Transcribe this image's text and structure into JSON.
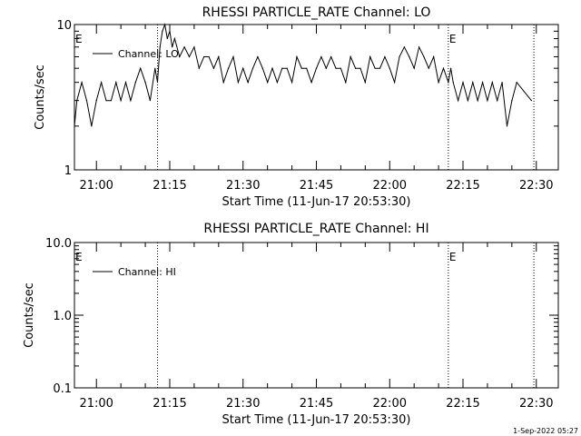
{
  "footer": {
    "timestamp": "1-Sep-2022 05:27"
  },
  "chart_data": [
    {
      "type": "line",
      "title": "RHESSI PARTICLE_RATE Channel: LO",
      "xlabel": "Start Time (11-Jun-17 20:53:30)",
      "ylabel": "Counts/sec",
      "yscale": "log",
      "ylim": [
        1,
        10
      ],
      "yticks": [
        "1",
        "10"
      ],
      "xlim_minutes_after_2050": [
        5.5,
        104.5
      ],
      "xticks": [
        "21:00",
        "21:15",
        "21:30",
        "21:45",
        "22:00",
        "22:15",
        "22:30"
      ],
      "xticks_minutes_after_2050": [
        10,
        25,
        40,
        55,
        70,
        85,
        100
      ],
      "vlines_minutes_after_2050": [
        22.5,
        82,
        99.5
      ],
      "markers": [
        {
          "text": "E",
          "minutes_after_2050": 5.5
        },
        {
          "text": "E",
          "minutes_after_2050": 82
        }
      ],
      "legend": {
        "position": "top-left",
        "entries": [
          "Channel: LO"
        ]
      },
      "series": [
        {
          "name": "Channel: LO",
          "x_minutes_after_2050": [
            5.5,
            6,
            7,
            8,
            9,
            10,
            11,
            12,
            13,
            14,
            15,
            16,
            17,
            18,
            19,
            20,
            21,
            22,
            22.5,
            23,
            23.5,
            24,
            24.5,
            25,
            25.5,
            26,
            27,
            28,
            29,
            30,
            31,
            32,
            33,
            34,
            35,
            36,
            37,
            38,
            39,
            40,
            41,
            42,
            43,
            44,
            45,
            46,
            47,
            48,
            49,
            50,
            51,
            52,
            53,
            54,
            55,
            56,
            57,
            58,
            59,
            60,
            61,
            62,
            63,
            64,
            65,
            66,
            67,
            68,
            69,
            70,
            71,
            72,
            73,
            74,
            75,
            76,
            77,
            78,
            79,
            80,
            81,
            82,
            82.5,
            83,
            84,
            85,
            86,
            87,
            88,
            89,
            90,
            91,
            92,
            93,
            94,
            95,
            96,
            99
          ],
          "y": [
            2,
            3,
            4,
            3,
            2,
            3,
            4,
            3,
            3,
            4,
            3,
            4,
            3,
            4,
            5,
            4,
            3,
            5,
            4,
            7,
            9,
            10,
            8,
            9,
            7,
            8,
            6,
            7,
            6,
            7,
            5,
            6,
            6,
            5,
            6,
            4,
            5,
            6,
            4,
            5,
            4,
            5,
            6,
            5,
            4,
            5,
            4,
            5,
            5,
            4,
            6,
            5,
            5,
            4,
            5,
            6,
            5,
            6,
            5,
            5,
            4,
            6,
            5,
            5,
            4,
            6,
            5,
            5,
            6,
            5,
            4,
            6,
            7,
            6,
            5,
            7,
            6,
            5,
            6,
            4,
            5,
            4,
            5,
            4,
            3,
            4,
            3,
            4,
            3,
            4,
            3,
            4,
            3,
            4,
            2,
            3,
            4,
            3
          ]
        }
      ]
    },
    {
      "type": "line",
      "title": "RHESSI PARTICLE_RATE Channel: HI",
      "xlabel": "Start Time (11-Jun-17 20:53:30)",
      "ylabel": "Counts/sec",
      "yscale": "log",
      "ylim": [
        0.1,
        10
      ],
      "yticks": [
        "0.1",
        "1.0",
        "10.0"
      ],
      "xlim_minutes_after_2050": [
        5.5,
        104.5
      ],
      "xticks": [
        "21:00",
        "21:15",
        "21:30",
        "21:45",
        "22:00",
        "22:15",
        "22:30"
      ],
      "xticks_minutes_after_2050": [
        10,
        25,
        40,
        55,
        70,
        85,
        100
      ],
      "vlines_minutes_after_2050": [
        22.5,
        82,
        99.5
      ],
      "markers": [
        {
          "text": "E",
          "minutes_after_2050": 5.5
        },
        {
          "text": "E",
          "minutes_after_2050": 82
        }
      ],
      "legend": {
        "position": "top-left",
        "entries": [
          "Channel: HI"
        ]
      },
      "series": [
        {
          "name": "Channel: HI",
          "x_minutes_after_2050": [],
          "y": []
        }
      ]
    }
  ]
}
